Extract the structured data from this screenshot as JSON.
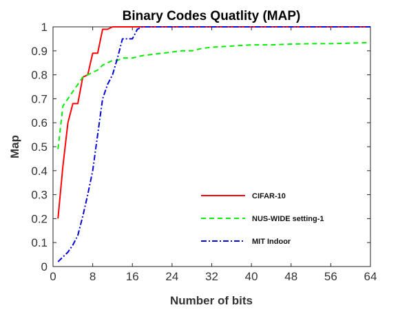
{
  "chart_data": {
    "type": "line",
    "title": "Binary Codes Quatlity (MAP)",
    "xlabel": "Number of bits",
    "ylabel": "Map",
    "xlim": [
      0,
      64
    ],
    "ylim": [
      0,
      1
    ],
    "xticks": [
      0,
      8,
      16,
      24,
      32,
      40,
      48,
      56,
      64
    ],
    "yticks": [
      0,
      0.1,
      0.2,
      0.3,
      0.4,
      0.5,
      0.6,
      0.7,
      0.8,
      0.9,
      1
    ],
    "xtick_labels": [
      "0",
      "8",
      "16",
      "24",
      "32",
      "40",
      "48",
      "56",
      "64"
    ],
    "ytick_labels": [
      "0",
      "0.1",
      "0.2",
      "0.3",
      "0.4",
      "0.5",
      "0.6",
      "0.7",
      "0.8",
      "0.9",
      "1"
    ],
    "grid": false,
    "legend_position": "bottom-right",
    "series": [
      {
        "name": "CIFAR-10",
        "color": "#ff0000",
        "style": "solid",
        "x": [
          1,
          2,
          3,
          4,
          5,
          6,
          7,
          8,
          9,
          10,
          11,
          12,
          13,
          14,
          16,
          20,
          24,
          32,
          40,
          48,
          56,
          64
        ],
        "y": [
          0.2,
          0.42,
          0.6,
          0.68,
          0.68,
          0.79,
          0.8,
          0.89,
          0.89,
          0.99,
          0.99,
          1.0,
          1.0,
          1.0,
          1.0,
          1.0,
          1.0,
          1.0,
          1.0,
          1.0,
          1.0,
          1.0
        ]
      },
      {
        "name": "NUS-WIDE setting-1",
        "color": "#00ee00",
        "style": "dashed",
        "x": [
          1,
          2,
          3,
          4,
          5,
          6,
          7,
          8,
          9,
          10,
          11,
          12,
          13,
          14,
          16,
          18,
          20,
          22,
          24,
          26,
          28,
          30,
          32,
          36,
          40,
          44,
          48,
          52,
          56,
          60,
          64
        ],
        "y": [
          0.49,
          0.67,
          0.7,
          0.73,
          0.76,
          0.79,
          0.8,
          0.81,
          0.82,
          0.84,
          0.85,
          0.86,
          0.86,
          0.87,
          0.87,
          0.88,
          0.885,
          0.89,
          0.895,
          0.9,
          0.9,
          0.91,
          0.915,
          0.92,
          0.925,
          0.925,
          0.928,
          0.93,
          0.93,
          0.932,
          0.935
        ]
      },
      {
        "name": "MIT Indoor",
        "color": "#0000dd",
        "style": "dashdot",
        "x": [
          1,
          2,
          3,
          4,
          5,
          6,
          7,
          8,
          9,
          10,
          11,
          12,
          13,
          14,
          15,
          16,
          17,
          18,
          20,
          24,
          32,
          40,
          48,
          56,
          64
        ],
        "y": [
          0.02,
          0.04,
          0.06,
          0.09,
          0.13,
          0.21,
          0.3,
          0.4,
          0.55,
          0.7,
          0.76,
          0.8,
          0.87,
          0.95,
          0.95,
          0.95,
          0.99,
          1.0,
          1.0,
          1.0,
          1.0,
          1.0,
          1.0,
          1.0,
          1.0
        ]
      }
    ]
  }
}
